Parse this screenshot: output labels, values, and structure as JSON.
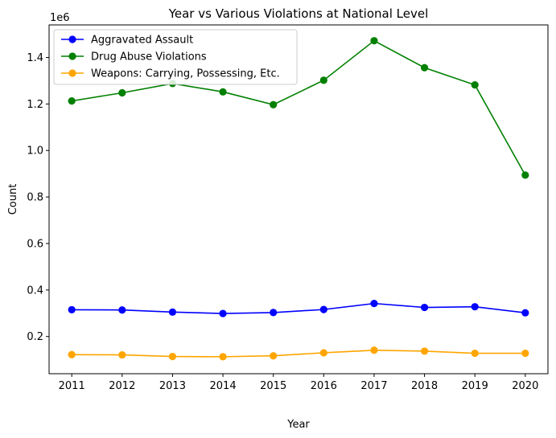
{
  "chart_data": {
    "type": "line",
    "title": "Year vs Various Violations at National Level",
    "xlabel": "Year",
    "ylabel": "Count",
    "y_multiplier_label": "1e6",
    "x": [
      2011,
      2012,
      2013,
      2014,
      2015,
      2016,
      2017,
      2018,
      2019,
      2020
    ],
    "xlim": [
      2010.55,
      2020.45
    ],
    "ylim": [
      0.04,
      1.54
    ],
    "y_ticks": [
      0.2,
      0.4,
      0.6,
      0.8,
      1.0,
      1.2,
      1.4
    ],
    "y_tick_labels": [
      "0.2",
      "0.4",
      "0.6",
      "0.8",
      "1.0",
      "1.2",
      "1.4"
    ],
    "x_tick_labels": [
      "2011",
      "2012",
      "2013",
      "2014",
      "2015",
      "2016",
      "2017",
      "2018",
      "2019",
      "2020"
    ],
    "grid": false,
    "legend_position": "top-left",
    "series": [
      {
        "name": "Aggravated Assault",
        "color": "#0000ff",
        "values": [
          0.315,
          0.314,
          0.305,
          0.299,
          0.303,
          0.316,
          0.342,
          0.325,
          0.328,
          0.302
        ]
      },
      {
        "name": "Drug Abuse Violations",
        "color": "#008000",
        "values": [
          1.213,
          1.248,
          1.288,
          1.252,
          1.197,
          1.302,
          1.472,
          1.356,
          1.282,
          0.894
        ]
      },
      {
        "name": "Weapons: Carrying, Possessing, Etc.",
        "color": "#ffa500",
        "values": [
          0.122,
          0.121,
          0.114,
          0.113,
          0.117,
          0.13,
          0.141,
          0.137,
          0.128,
          0.128
        ]
      }
    ]
  }
}
